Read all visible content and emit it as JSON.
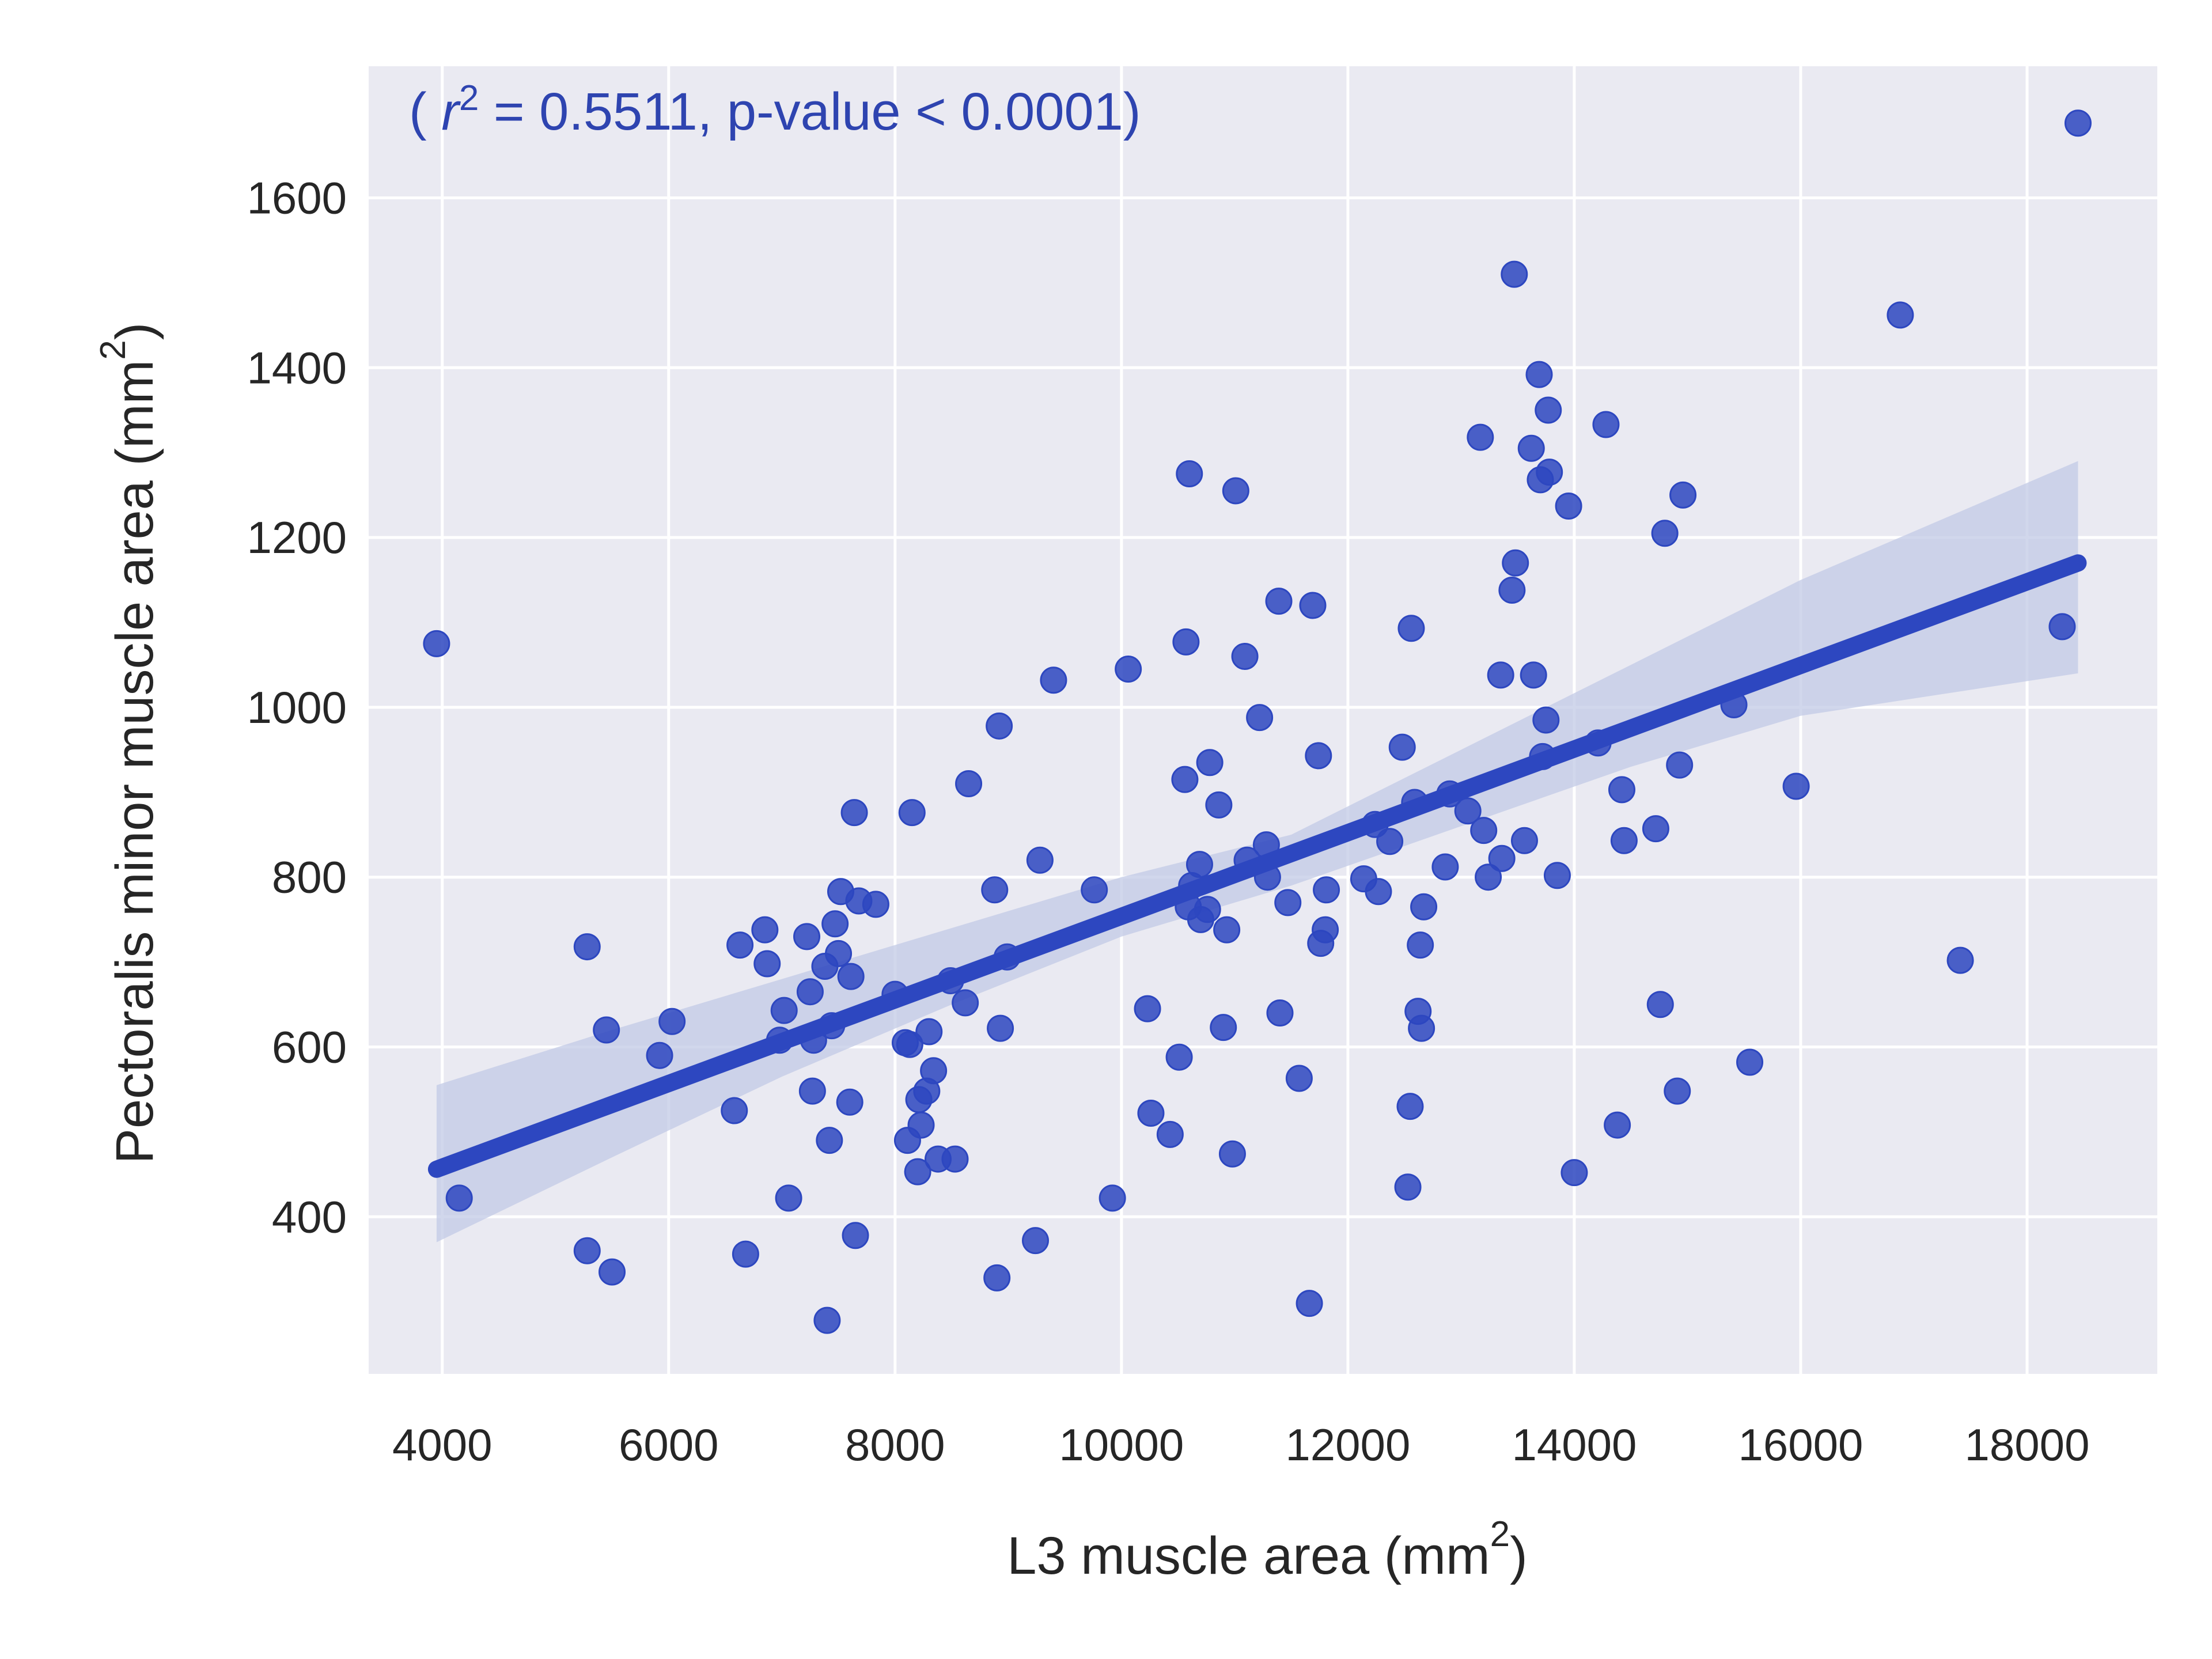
{
  "chart_data": {
    "type": "scatter",
    "title": "",
    "xlabel": "L3 muscle area (mm",
    "ylabel": "Pectoralis minor muscle area (mm",
    "label_unit_suffix": ")",
    "label_superscript": "2",
    "xlim": [
      3350,
      19150
    ],
    "ylim": [
      215,
      1755
    ],
    "xticks": [
      4000,
      6000,
      8000,
      10000,
      12000,
      14000,
      16000,
      18000
    ],
    "yticks": [
      400,
      600,
      800,
      1000,
      1200,
      1400,
      1600
    ],
    "grid": true,
    "legend": "none",
    "annotation": {
      "open": "( ",
      "var": "r",
      "sup": "2",
      "rest": " = 0.5511, p-value < 0.0001)",
      "position": "top-left"
    },
    "colors": {
      "background": "#eaeaf2",
      "grid": "#ffffff",
      "points": "#2d47c0",
      "line": "#2d47c0",
      "band": "#c2c9e6",
      "annotation": "#2e44b0"
    },
    "regression": {
      "x": [
        3950,
        18450
      ],
      "y": [
        456,
        1170
      ],
      "ci_upper": [
        555,
        620,
        680,
        740,
        800,
        850,
        950,
        1050,
        1150,
        1290
      ],
      "ci_lower": [
        370,
        470,
        565,
        650,
        730,
        790,
        860,
        930,
        990,
        1040
      ],
      "ci_x": [
        3950,
        5500,
        7000,
        8500,
        10000,
        11500,
        13000,
        14500,
        16000,
        18450
      ]
    },
    "points": [
      {
        "x": 3950,
        "y": 1075
      },
      {
        "x": 4150,
        "y": 422
      },
      {
        "x": 5280,
        "y": 718
      },
      {
        "x": 5280,
        "y": 360
      },
      {
        "x": 5450,
        "y": 620
      },
      {
        "x": 5500,
        "y": 335
      },
      {
        "x": 5920,
        "y": 590
      },
      {
        "x": 6030,
        "y": 630
      },
      {
        "x": 6580,
        "y": 525
      },
      {
        "x": 6630,
        "y": 720
      },
      {
        "x": 6680,
        "y": 356
      },
      {
        "x": 6850,
        "y": 738
      },
      {
        "x": 6870,
        "y": 698
      },
      {
        "x": 6980,
        "y": 608
      },
      {
        "x": 7020,
        "y": 643
      },
      {
        "x": 7060,
        "y": 422
      },
      {
        "x": 7220,
        "y": 730
      },
      {
        "x": 7250,
        "y": 665
      },
      {
        "x": 7270,
        "y": 548
      },
      {
        "x": 7280,
        "y": 608
      },
      {
        "x": 7380,
        "y": 695
      },
      {
        "x": 7400,
        "y": 278
      },
      {
        "x": 7420,
        "y": 490
      },
      {
        "x": 7440,
        "y": 625
      },
      {
        "x": 7470,
        "y": 745
      },
      {
        "x": 7500,
        "y": 710
      },
      {
        "x": 7520,
        "y": 783
      },
      {
        "x": 7600,
        "y": 535
      },
      {
        "x": 7610,
        "y": 683
      },
      {
        "x": 7640,
        "y": 876
      },
      {
        "x": 7650,
        "y": 378
      },
      {
        "x": 7680,
        "y": 772
      },
      {
        "x": 7830,
        "y": 768
      },
      {
        "x": 8000,
        "y": 662
      },
      {
        "x": 8090,
        "y": 605
      },
      {
        "x": 8110,
        "y": 490
      },
      {
        "x": 8130,
        "y": 603
      },
      {
        "x": 8150,
        "y": 876
      },
      {
        "x": 8200,
        "y": 453
      },
      {
        "x": 8210,
        "y": 538
      },
      {
        "x": 8230,
        "y": 508
      },
      {
        "x": 8280,
        "y": 548
      },
      {
        "x": 8300,
        "y": 618
      },
      {
        "x": 8340,
        "y": 572
      },
      {
        "x": 8380,
        "y": 468
      },
      {
        "x": 8490,
        "y": 678
      },
      {
        "x": 8530,
        "y": 468
      },
      {
        "x": 8620,
        "y": 652
      },
      {
        "x": 8650,
        "y": 910
      },
      {
        "x": 8880,
        "y": 785
      },
      {
        "x": 8900,
        "y": 328
      },
      {
        "x": 8920,
        "y": 978
      },
      {
        "x": 8930,
        "y": 622
      },
      {
        "x": 8990,
        "y": 706
      },
      {
        "x": 9240,
        "y": 372
      },
      {
        "x": 9280,
        "y": 820
      },
      {
        "x": 9400,
        "y": 1032
      },
      {
        "x": 9760,
        "y": 785
      },
      {
        "x": 9920,
        "y": 422
      },
      {
        "x": 10060,
        "y": 1045
      },
      {
        "x": 10230,
        "y": 645
      },
      {
        "x": 10260,
        "y": 522
      },
      {
        "x": 10430,
        "y": 497
      },
      {
        "x": 10510,
        "y": 588
      },
      {
        "x": 10560,
        "y": 915
      },
      {
        "x": 10570,
        "y": 1077
      },
      {
        "x": 10590,
        "y": 765
      },
      {
        "x": 10600,
        "y": 1275
      },
      {
        "x": 10620,
        "y": 790
      },
      {
        "x": 10690,
        "y": 815
      },
      {
        "x": 10700,
        "y": 750
      },
      {
        "x": 10760,
        "y": 762
      },
      {
        "x": 10780,
        "y": 935
      },
      {
        "x": 10860,
        "y": 885
      },
      {
        "x": 10900,
        "y": 623
      },
      {
        "x": 10930,
        "y": 738
      },
      {
        "x": 10980,
        "y": 474
      },
      {
        "x": 11010,
        "y": 1255
      },
      {
        "x": 11090,
        "y": 1060
      },
      {
        "x": 11110,
        "y": 820
      },
      {
        "x": 11220,
        "y": 988
      },
      {
        "x": 11280,
        "y": 838
      },
      {
        "x": 11290,
        "y": 800
      },
      {
        "x": 11390,
        "y": 1125
      },
      {
        "x": 11400,
        "y": 640
      },
      {
        "x": 11470,
        "y": 770
      },
      {
        "x": 11570,
        "y": 563
      },
      {
        "x": 11660,
        "y": 298
      },
      {
        "x": 11690,
        "y": 1120
      },
      {
        "x": 11740,
        "y": 943
      },
      {
        "x": 11760,
        "y": 722
      },
      {
        "x": 11800,
        "y": 738
      },
      {
        "x": 11810,
        "y": 785
      },
      {
        "x": 12140,
        "y": 798
      },
      {
        "x": 12240,
        "y": 862
      },
      {
        "x": 12270,
        "y": 783
      },
      {
        "x": 12370,
        "y": 842
      },
      {
        "x": 12480,
        "y": 953
      },
      {
        "x": 12530,
        "y": 435
      },
      {
        "x": 12550,
        "y": 530
      },
      {
        "x": 12560,
        "y": 1093
      },
      {
        "x": 12590,
        "y": 888
      },
      {
        "x": 12620,
        "y": 642
      },
      {
        "x": 12640,
        "y": 720
      },
      {
        "x": 12650,
        "y": 622
      },
      {
        "x": 12670,
        "y": 765
      },
      {
        "x": 12860,
        "y": 812
      },
      {
        "x": 12900,
        "y": 898
      },
      {
        "x": 13060,
        "y": 878
      },
      {
        "x": 13170,
        "y": 1318
      },
      {
        "x": 13200,
        "y": 855
      },
      {
        "x": 13240,
        "y": 800
      },
      {
        "x": 13350,
        "y": 1038
      },
      {
        "x": 13360,
        "y": 822
      },
      {
        "x": 13450,
        "y": 1138
      },
      {
        "x": 13470,
        "y": 1510
      },
      {
        "x": 13480,
        "y": 1170
      },
      {
        "x": 13560,
        "y": 843
      },
      {
        "x": 13620,
        "y": 1305
      },
      {
        "x": 13640,
        "y": 1038
      },
      {
        "x": 13690,
        "y": 1392
      },
      {
        "x": 13700,
        "y": 1268
      },
      {
        "x": 13720,
        "y": 942
      },
      {
        "x": 13750,
        "y": 985
      },
      {
        "x": 13770,
        "y": 1350
      },
      {
        "x": 13780,
        "y": 1277
      },
      {
        "x": 13850,
        "y": 802
      },
      {
        "x": 13950,
        "y": 1237
      },
      {
        "x": 14000,
        "y": 452
      },
      {
        "x": 14210,
        "y": 958
      },
      {
        "x": 14280,
        "y": 1333
      },
      {
        "x": 14380,
        "y": 508
      },
      {
        "x": 14420,
        "y": 903
      },
      {
        "x": 14440,
        "y": 843
      },
      {
        "x": 14720,
        "y": 857
      },
      {
        "x": 14760,
        "y": 650
      },
      {
        "x": 14800,
        "y": 1205
      },
      {
        "x": 14910,
        "y": 548
      },
      {
        "x": 14930,
        "y": 932
      },
      {
        "x": 14960,
        "y": 1250
      },
      {
        "x": 15410,
        "y": 1003
      },
      {
        "x": 15550,
        "y": 582
      },
      {
        "x": 15960,
        "y": 907
      },
      {
        "x": 16880,
        "y": 1462
      },
      {
        "x": 17410,
        "y": 702
      },
      {
        "x": 18310,
        "y": 1095
      },
      {
        "x": 18450,
        "y": 1688
      }
    ]
  }
}
